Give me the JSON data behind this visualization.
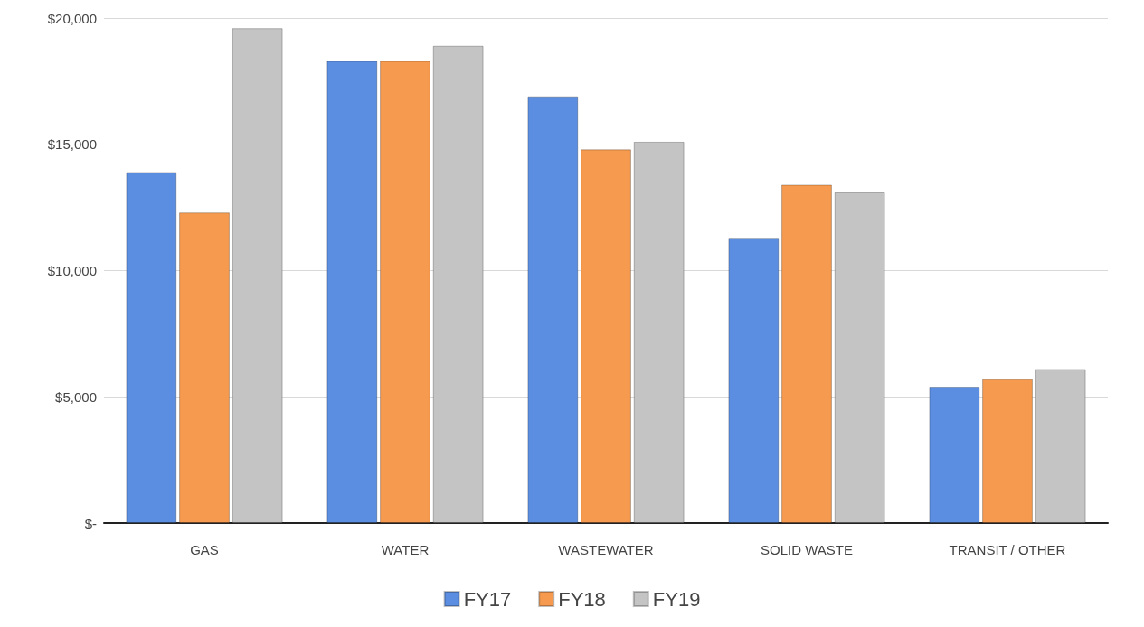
{
  "chart_data": {
    "type": "bar",
    "categories": [
      "GAS",
      "WATER",
      "WASTEWATER",
      "SOLID WASTE",
      "TRANSIT / OTHER"
    ],
    "series": [
      {
        "name": "FY17",
        "color": "#5b8ee0",
        "values": [
          13900,
          18300,
          16900,
          11300,
          5400
        ]
      },
      {
        "name": "FY18",
        "color": "#f59a4f",
        "values": [
          12300,
          18300,
          14800,
          13400,
          5700
        ]
      },
      {
        "name": "FY19",
        "color": "#c4c4c4",
        "values": [
          19600,
          18900,
          15100,
          13100,
          6100
        ]
      }
    ],
    "ylim": [
      0,
      20000
    ],
    "yticks": [
      {
        "value": 0,
        "label": "$-"
      },
      {
        "value": 5000,
        "label": "$5,000"
      },
      {
        "value": 10000,
        "label": "$10,000"
      },
      {
        "value": 15000,
        "label": "$15,000"
      },
      {
        "value": 20000,
        "label": "$20,000"
      }
    ],
    "grid": "y",
    "legend": "bottom"
  }
}
